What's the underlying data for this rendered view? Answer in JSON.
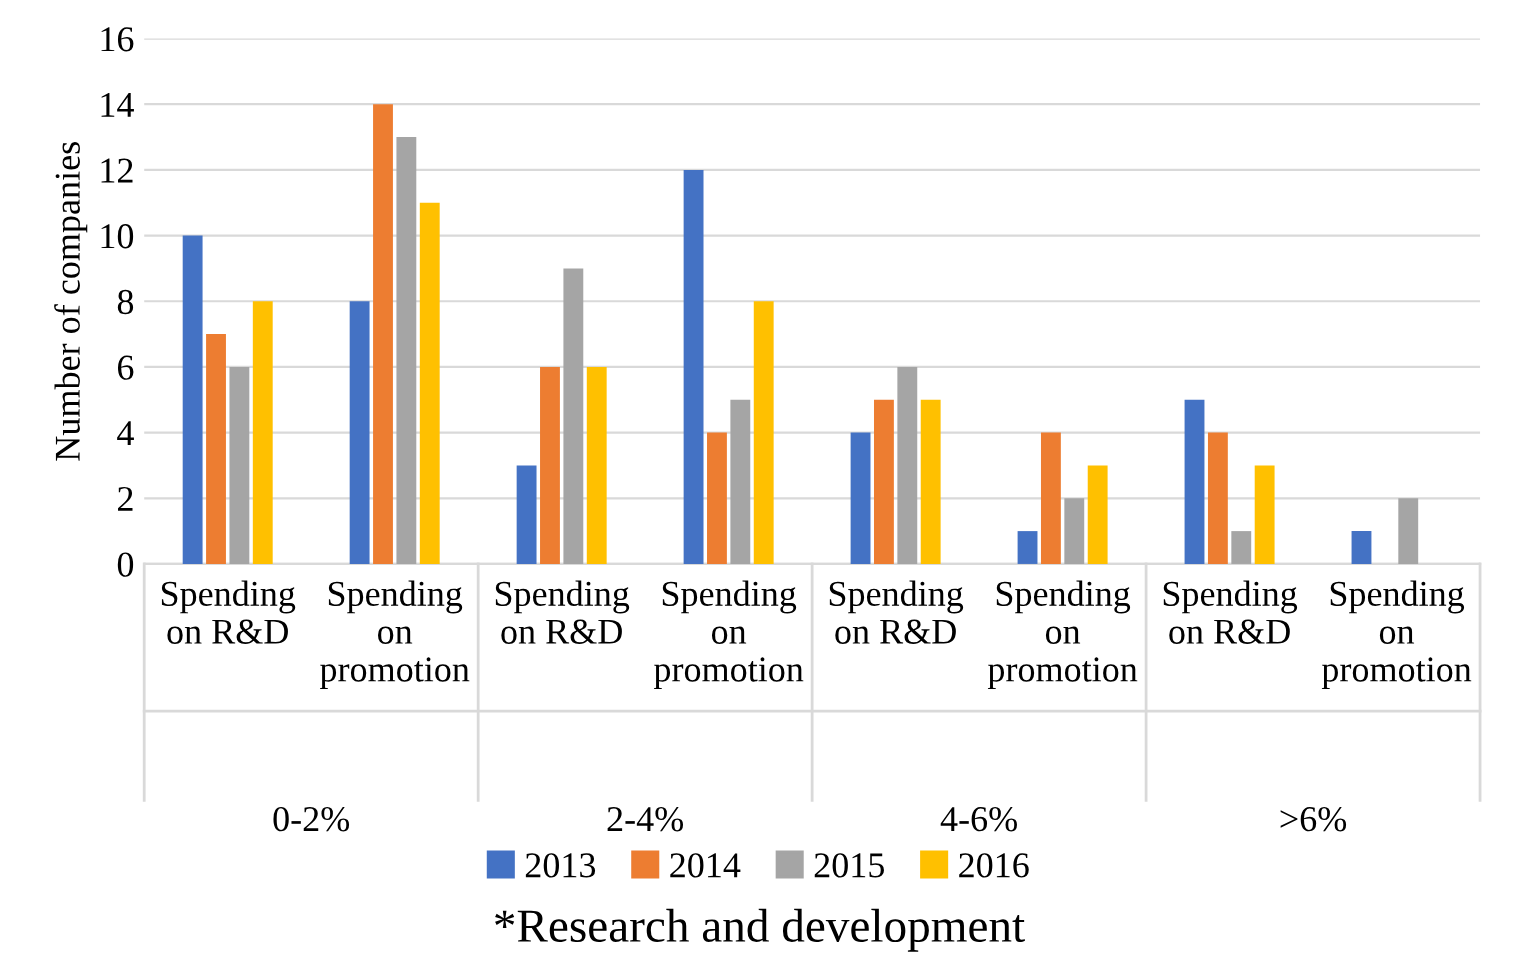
{
  "chart_data": {
    "type": "bar",
    "ylabel": "Number of companies",
    "categories": [
      "Spending on R&D",
      "Spending on promotion",
      "Spending on R&D",
      "Spending on promotion",
      "Spending on R&D",
      "Spending on promotion",
      "Spending on R&D",
      "Spending on promotion"
    ],
    "series": [
      {
        "name": "2013",
        "color": "#4472c4",
        "values": [
          10,
          8,
          3,
          12,
          4,
          1,
          5,
          1
        ]
      },
      {
        "name": "2014",
        "color": "#ed7d31",
        "values": [
          7,
          14,
          6,
          4,
          5,
          4,
          4,
          0
        ]
      },
      {
        "name": "2015",
        "color": "#a5a5a5",
        "values": [
          6,
          13,
          9,
          5,
          6,
          2,
          1,
          2
        ]
      },
      {
        "name": "2016",
        "color": "#ffc000",
        "values": [
          8,
          11,
          6,
          8,
          5,
          3,
          3,
          0
        ]
      }
    ],
    "annotations": [
      "0-2%",
      "2-4%",
      "4-6%",
      ">6%",
      "*Research and development"
    ],
    "ylim": [
      0,
      16
    ],
    "yticks": [
      0,
      2,
      4,
      6,
      8,
      10,
      12,
      14,
      16
    ],
    "grid": "y",
    "legend": "bottom"
  }
}
